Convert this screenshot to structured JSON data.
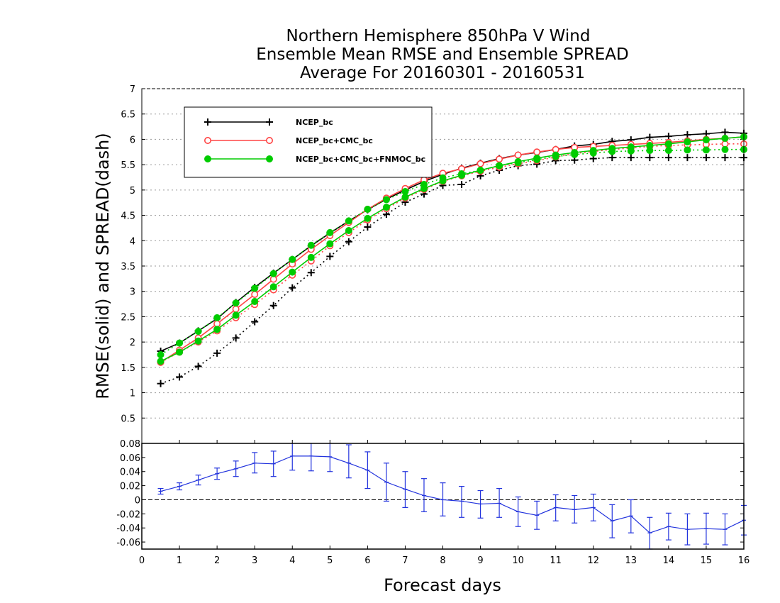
{
  "chart_data": [
    {
      "type": "line",
      "title_lines": [
        "Northern Hemisphere 850hPa V Wind",
        "Ensemble Mean RMSE and Ensemble SPREAD",
        "Average For 20160301 - 20160531"
      ],
      "xlabel": "",
      "ylabel": "RMSE(solid) and SPREAD(dash)",
      "xlim": [
        0,
        16
      ],
      "ylim": [
        0,
        7
      ],
      "yticks": [
        0.5,
        1,
        1.5,
        2,
        2.5,
        3,
        3.5,
        4,
        4.5,
        5,
        5.5,
        6,
        6.5,
        7
      ],
      "ytick_labels": [
        "0.5",
        "1",
        "1.5",
        "2",
        "2.5",
        "3",
        "3.5",
        "4",
        "4.5",
        "5",
        "5.5",
        "6",
        "6.5",
        "7"
      ],
      "grid": true,
      "legend_position": "top-left",
      "x": [
        0.5,
        1,
        1.5,
        2,
        2.5,
        3,
        3.5,
        4,
        4.5,
        5,
        5.5,
        6,
        6.5,
        7,
        7.5,
        8,
        8.5,
        9,
        9.5,
        10,
        10.5,
        11,
        11.5,
        12,
        12.5,
        13,
        13.5,
        14,
        14.5,
        15,
        15.5,
        16
      ],
      "series": [
        {
          "name": "NCEP_bc",
          "color": "#000000",
          "marker": "plus",
          "rmse": [
            1.82,
            1.98,
            2.22,
            2.46,
            2.78,
            3.08,
            3.36,
            3.63,
            3.9,
            4.15,
            4.39,
            4.61,
            4.82,
            5.0,
            5.17,
            5.31,
            5.43,
            5.53,
            5.62,
            5.69,
            5.74,
            5.8,
            5.87,
            5.9,
            5.96,
            5.99,
            6.04,
            6.06,
            6.09,
            6.11,
            6.14,
            6.12
          ],
          "spread": [
            1.18,
            1.31,
            1.52,
            1.78,
            2.08,
            2.4,
            2.72,
            3.07,
            3.37,
            3.69,
            3.98,
            4.27,
            4.52,
            4.76,
            4.92,
            5.09,
            5.11,
            5.28,
            5.39,
            5.48,
            5.51,
            5.58,
            5.59,
            5.62,
            5.64,
            5.64,
            5.64,
            5.64,
            5.64,
            5.64,
            5.64,
            5.64
          ]
        },
        {
          "name": "NCEP_bc+CMC_bc",
          "color": "#ff4444",
          "marker": "circle-open",
          "rmse": [
            1.6,
            1.84,
            2.08,
            2.36,
            2.65,
            2.94,
            3.24,
            3.54,
            3.83,
            4.1,
            4.36,
            4.62,
            4.84,
            5.03,
            5.2,
            5.33,
            5.42,
            5.52,
            5.61,
            5.69,
            5.75,
            5.8,
            5.84,
            5.86,
            5.88,
            5.9,
            5.92,
            5.94,
            5.97,
            6.0,
            6.02,
            6.05
          ],
          "spread": [
            1.6,
            1.8,
            2.0,
            2.22,
            2.48,
            2.74,
            3.03,
            3.32,
            3.6,
            3.9,
            4.16,
            4.41,
            4.63,
            4.84,
            5.01,
            5.17,
            5.28,
            5.37,
            5.45,
            5.52,
            5.58,
            5.65,
            5.72,
            5.76,
            5.8,
            5.83,
            5.86,
            5.88,
            5.89,
            5.9,
            5.91,
            5.91
          ]
        },
        {
          "name": "NCEP_bc+CMC_bc+FNMOC_bc",
          "color": "#00cc00",
          "marker": "circle-filled",
          "rmse": [
            1.62,
            1.8,
            2.02,
            2.25,
            2.53,
            2.8,
            3.09,
            3.38,
            3.67,
            3.94,
            4.2,
            4.44,
            4.66,
            4.86,
            5.03,
            5.18,
            5.29,
            5.39,
            5.48,
            5.56,
            5.63,
            5.69,
            5.74,
            5.78,
            5.82,
            5.85,
            5.88,
            5.91,
            5.95,
            5.99,
            6.02,
            6.05
          ],
          "spread": [
            1.75,
            1.98,
            2.21,
            2.48,
            2.77,
            3.06,
            3.35,
            3.63,
            3.91,
            4.16,
            4.39,
            4.62,
            4.81,
            4.97,
            5.11,
            5.24,
            5.32,
            5.39,
            5.48,
            5.54,
            5.6,
            5.66,
            5.7,
            5.73,
            5.76,
            5.77,
            5.78,
            5.78,
            5.79,
            5.79,
            5.8,
            5.8
          ]
        }
      ]
    },
    {
      "type": "line",
      "xlabel": "Forecast days",
      "xlim": [
        0,
        16
      ],
      "ylim": [
        -0.07,
        0.08
      ],
      "xticks": [
        0,
        1,
        2,
        3,
        4,
        5,
        6,
        7,
        8,
        9,
        10,
        11,
        12,
        13,
        14,
        15,
        16
      ],
      "xtick_labels": [
        "0",
        "1",
        "2",
        "3",
        "4",
        "5",
        "6",
        "7",
        "8",
        "9",
        "10",
        "11",
        "12",
        "13",
        "14",
        "15",
        "16"
      ],
      "yticks": [
        -0.06,
        -0.04,
        -0.02,
        0,
        0.02,
        0.04,
        0.06,
        0.08
      ],
      "ytick_labels": [
        "-0.06",
        "-0.04",
        "-0.02",
        "0",
        "0.02",
        "0.04",
        "0.06",
        "0.08"
      ],
      "zero_line": "dashed",
      "series": [
        {
          "name": "",
          "color": "#2233dd",
          "x": [
            0.5,
            1,
            1.5,
            2,
            2.5,
            3,
            3.5,
            4,
            4.5,
            5,
            5.5,
            6,
            6.5,
            7,
            7.5,
            8,
            8.5,
            9,
            9.5,
            10,
            10.5,
            11,
            11.5,
            12,
            12.5,
            13,
            13.5,
            14,
            14.5,
            15,
            15.5,
            16
          ],
          "values": [
            0.012,
            0.019,
            0.028,
            0.037,
            0.044,
            0.052,
            0.051,
            0.062,
            0.062,
            0.061,
            0.052,
            0.042,
            0.025,
            0.015,
            0.006,
            0.0,
            -0.002,
            -0.006,
            -0.005,
            -0.017,
            -0.022,
            -0.011,
            -0.014,
            -0.011,
            -0.03,
            -0.023,
            -0.047,
            -0.038,
            -0.042,
            -0.041,
            -0.042,
            -0.029
          ],
          "err_low": [
            0.008,
            0.014,
            0.021,
            0.029,
            0.033,
            0.038,
            0.033,
            0.042,
            0.041,
            0.04,
            0.031,
            0.016,
            -0.002,
            -0.011,
            -0.017,
            -0.023,
            -0.025,
            -0.026,
            -0.025,
            -0.038,
            -0.042,
            -0.03,
            -0.033,
            -0.03,
            -0.054,
            -0.047,
            -0.07,
            -0.057,
            -0.064,
            -0.063,
            -0.064,
            -0.05
          ],
          "err_high": [
            0.016,
            0.024,
            0.035,
            0.045,
            0.055,
            0.067,
            0.069,
            0.082,
            0.083,
            0.083,
            0.078,
            0.068,
            0.052,
            0.04,
            0.03,
            0.024,
            0.019,
            0.013,
            0.016,
            0.004,
            -0.002,
            0.007,
            0.006,
            0.008,
            -0.007,
            0.0,
            -0.025,
            -0.019,
            -0.02,
            -0.019,
            -0.02,
            -0.008
          ]
        }
      ]
    }
  ]
}
